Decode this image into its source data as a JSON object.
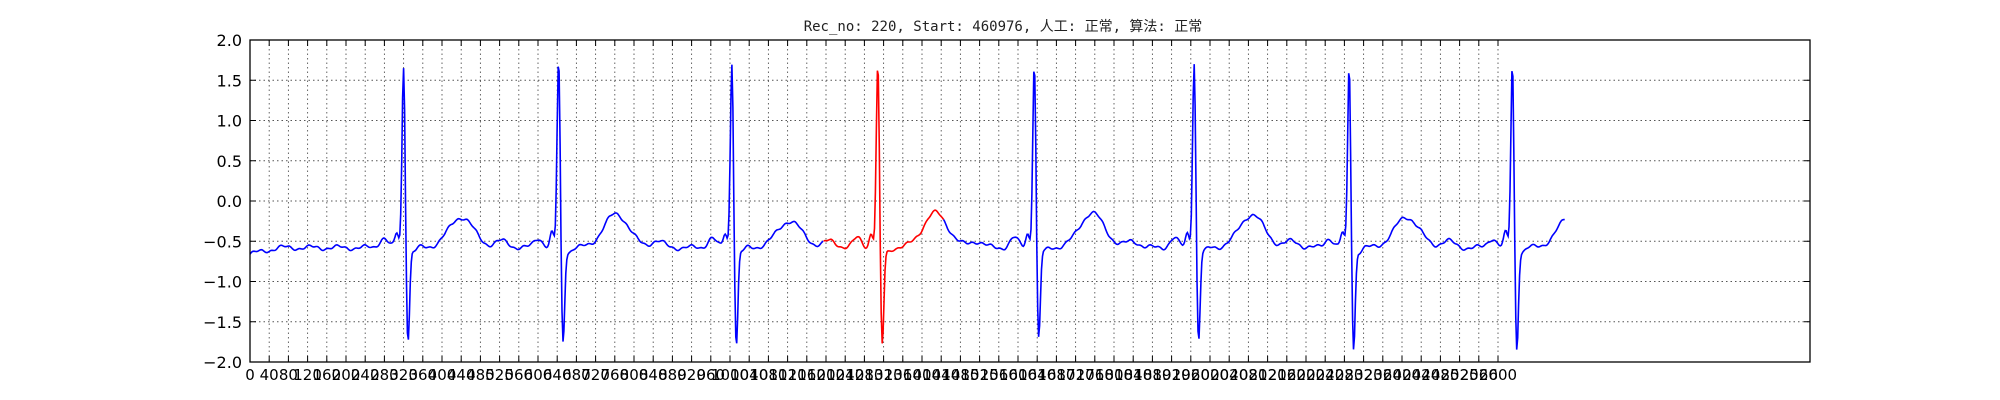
{
  "chart_data": {
    "type": "line",
    "title": "Rec_no: 220, Start: 460976, 人工: 正常, 算法: 正常",
    "xlabel": "",
    "ylabel": "",
    "xlim": [
      0,
      3250
    ],
    "ylim": [
      -2.0,
      2.0
    ],
    "grid": true,
    "legend": "none",
    "yticks": [
      -2.0,
      -1.5,
      -1.0,
      -0.5,
      0.0,
      0.5,
      1.0,
      1.5,
      2.0
    ],
    "ytick_labels": [
      "−2.0",
      "−1.5",
      "−1.0",
      "−0.5",
      "0.0",
      "0.5",
      "1.0",
      "1.5",
      "2.0"
    ],
    "xticks": [
      0,
      40,
      80,
      120,
      160,
      200,
      240,
      280,
      320,
      360,
      400,
      440,
      480,
      520,
      560,
      600,
      640,
      680,
      720,
      760,
      800,
      840,
      880,
      920,
      960,
      1000,
      1040,
      1080,
      1120,
      1160,
      1200,
      1240,
      1280,
      1320,
      1360,
      1400,
      1440,
      1480,
      1520,
      1560,
      1600,
      1640,
      1680,
      1720,
      1760,
      1800,
      1840,
      1880,
      1920,
      1960,
      2000,
      2040,
      2080,
      2120,
      2160,
      2200,
      2240,
      2280,
      2320,
      2360,
      2400,
      2440,
      2480,
      2520,
      2560,
      2600
    ],
    "beats": [
      {
        "x": 320,
        "peak": 1.7,
        "trough": -1.75,
        "t_peak": -0.2,
        "t_x": 280,
        "color": "#0000ff"
      },
      {
        "x": 643,
        "peak": 1.78,
        "trough": -1.78,
        "t_peak": -0.16,
        "t_x": 380,
        "color": "#0000ff"
      },
      {
        "x": 1004,
        "peak": 1.76,
        "trough": -1.82,
        "t_peak": -0.25,
        "t_x": 380,
        "color": "#0000ff"
      },
      {
        "x": 1308,
        "peak": 1.72,
        "trough": -1.82,
        "t_peak": -0.15,
        "t_x": 360,
        "color": "#ff0000"
      },
      {
        "x": 1634,
        "peak": 1.76,
        "trough": -1.74,
        "t_peak": -0.15,
        "t_x": 395,
        "color": "#0000ff"
      },
      {
        "x": 1967,
        "peak": 1.76,
        "trough": -1.76,
        "t_peak": -0.17,
        "t_x": 400,
        "color": "#0000ff"
      },
      {
        "x": 2290,
        "peak": 1.71,
        "trough": -1.86,
        "t_peak": -0.2,
        "t_x": 390,
        "color": "#0000ff"
      },
      {
        "x": 2630,
        "peak": 1.74,
        "trough": -1.86,
        "t_peak": -0.2,
        "t_x": 375,
        "color": "#0000ff"
      }
    ],
    "x_end": 2740,
    "highlight": {
      "x_start": 1195,
      "x_end": 1445,
      "color": "#ff0000"
    },
    "series": [
      {
        "name": "",
        "color": "#0000ff"
      },
      {
        "name": "",
        "color": "#ff0000"
      }
    ]
  }
}
